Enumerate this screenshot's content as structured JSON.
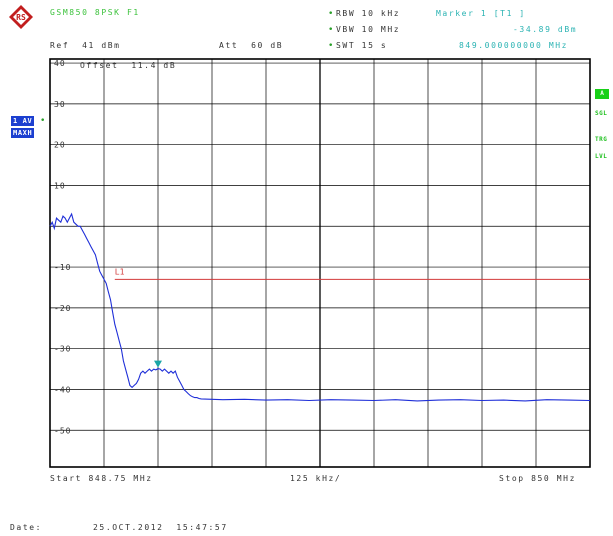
{
  "header": {
    "title": "GSM850 8PSK F1",
    "rbw": "RBW 10 kHz",
    "vbw": "VBW 10 MHz",
    "swt": "SWT 15 s",
    "marker_label": "Marker 1 [T1 ]",
    "marker_level": "-34.89 dBm",
    "marker_freq": "849.000000000 MHz",
    "ref": "Ref  41 dBm",
    "att": "Att  60 dB",
    "offset": "Offset  11.4 dB"
  },
  "left_panel": {
    "trace_label": "1 AV",
    "detector": "MAXH"
  },
  "right_panel": {
    "a_badge": "A",
    "sgl": "SGL",
    "trg": "TRG",
    "lvl": "LVL"
  },
  "footer": {
    "start": "Start 848.75 MHz",
    "span": "125 kHz/",
    "stop": "Stop 850 MHz",
    "date_label": "Date:",
    "date_value": "25.OCT.2012  15:47:57"
  },
  "colors": {
    "trace": "#1f2fd8",
    "limit": "#d23a3a",
    "marker": "#1aa6a6",
    "grid": "#000000"
  },
  "chart_data": {
    "type": "line",
    "xlabel": "",
    "ylabel": "",
    "xlim": [
      848.75,
      850.0
    ],
    "ylim": [
      -59,
      41
    ],
    "y_ticks": [
      40,
      30,
      20,
      10,
      -10,
      -20,
      -30,
      -40,
      -50
    ],
    "grid": true,
    "limit_line": {
      "name": "L1",
      "value": -13,
      "x_start": 848.9
    },
    "marker": {
      "name": "T1",
      "x": 849.0,
      "y": -34.89
    },
    "series": [
      {
        "values_x": [
          848.75,
          848.755,
          848.76,
          848.765,
          848.77,
          848.775,
          848.78,
          848.785,
          848.79,
          848.795,
          848.8,
          848.805,
          848.81,
          848.815,
          848.82,
          848.825,
          848.83,
          848.835,
          848.84,
          848.845,
          848.85,
          848.855,
          848.86,
          848.865,
          848.87,
          848.875,
          848.88,
          848.885,
          848.89,
          848.895,
          848.9,
          848.905,
          848.91,
          848.915,
          848.92,
          848.925,
          848.93,
          848.935,
          848.94,
          848.945,
          848.95,
          848.955,
          848.96,
          848.965,
          848.97,
          848.975,
          848.98,
          848.985,
          848.99,
          848.995,
          849.0,
          849.005,
          849.01,
          849.015,
          849.02,
          849.025,
          849.03,
          849.035,
          849.04,
          849.045,
          849.05,
          849.055,
          849.06,
          849.065,
          849.07,
          849.075,
          849.08,
          849.085,
          849.09,
          849.095,
          849.1,
          849.15,
          849.2,
          849.25,
          849.3,
          849.35,
          849.4,
          849.45,
          849.5,
          849.55,
          849.6,
          849.65,
          849.7,
          849.75,
          849.8,
          849.85,
          849.9,
          849.95,
          850.0
        ],
        "values_y": [
          0,
          1,
          -0.5,
          2,
          1.5,
          1,
          2.5,
          2,
          1,
          2,
          3,
          1,
          0.5,
          0,
          0,
          -1,
          -2,
          -3,
          -4,
          -5,
          -6,
          -7,
          -9,
          -11,
          -12,
          -13,
          -14,
          -16,
          -18,
          -21,
          -24,
          -26,
          -28,
          -30,
          -33,
          -35,
          -37,
          -39,
          -39.5,
          -39,
          -38.5,
          -37.5,
          -36,
          -35.5,
          -36,
          -35.5,
          -35,
          -35.5,
          -35,
          -35.2,
          -34.89,
          -35,
          -35.5,
          -35,
          -35.5,
          -36,
          -35.5,
          -36,
          -35.5,
          -37,
          -38,
          -39,
          -40,
          -40.5,
          -41,
          -41.5,
          -41.8,
          -42,
          -42,
          -42.2,
          -42.3,
          -42.5,
          -42.4,
          -42.6,
          -42.5,
          -42.7,
          -42.5,
          -42.6,
          -42.7,
          -42.5,
          -42.8,
          -42.6,
          -42.5,
          -42.7,
          -42.6,
          -42.8,
          -42.5,
          -42.6,
          -42.7
        ]
      }
    ]
  }
}
